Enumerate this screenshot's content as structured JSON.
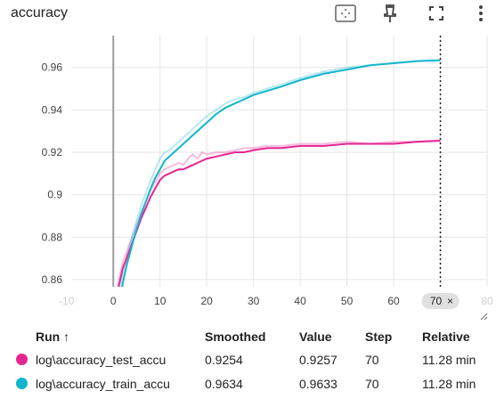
{
  "card": {
    "title": "accuracy"
  },
  "toolbar": {
    "fit_icon": "fit-to-domain-icon",
    "pin_icon": "pin-icon",
    "fullscreen_icon": "fullscreen-icon",
    "more_icon": "more-vert-icon"
  },
  "chart_data": {
    "type": "line",
    "title": "accuracy",
    "xlabel": "",
    "ylabel": "",
    "xlim": [
      -9,
      80
    ],
    "ylim": [
      0.8566,
      0.975
    ],
    "x_ticks": [
      -10,
      0,
      10,
      20,
      30,
      40,
      50,
      60,
      70,
      80
    ],
    "y_ticks": [
      0.86,
      0.88,
      0.9,
      0.92,
      0.94,
      0.96
    ],
    "y_tick_labels": [
      "0.86",
      "0.88",
      "0.9",
      "0.92",
      "0.94",
      "0.96"
    ],
    "grid": true,
    "hover_step": 70,
    "hover_label": "70",
    "series": [
      {
        "name": "log\\accuracy_test_accu",
        "color": "#e52592",
        "x": [
          0,
          1,
          2,
          3,
          4,
          5,
          6,
          7,
          8,
          9,
          10,
          11,
          12,
          13,
          14,
          15,
          16,
          17,
          18,
          19,
          20,
          22,
          24,
          26,
          28,
          30,
          33,
          36,
          40,
          45,
          50,
          55,
          60,
          65,
          70
        ],
        "smoothed": [
          0.82,
          0.855,
          0.865,
          0.871,
          0.877,
          0.883,
          0.889,
          0.894,
          0.899,
          0.903,
          0.907,
          0.909,
          0.91,
          0.911,
          0.912,
          0.912,
          0.913,
          0.914,
          0.915,
          0.916,
          0.917,
          0.918,
          0.919,
          0.92,
          0.92,
          0.921,
          0.922,
          0.922,
          0.923,
          0.923,
          0.924,
          0.924,
          0.924,
          0.925,
          0.9254
        ],
        "raw": [
          0.82,
          0.858,
          0.868,
          0.874,
          0.88,
          0.886,
          0.892,
          0.897,
          0.902,
          0.906,
          0.91,
          0.912,
          0.913,
          0.914,
          0.915,
          0.914,
          0.917,
          0.919,
          0.917,
          0.92,
          0.919,
          0.92,
          0.92,
          0.921,
          0.922,
          0.922,
          0.923,
          0.923,
          0.924,
          0.924,
          0.925,
          0.924,
          0.925,
          0.925,
          0.9257
        ]
      },
      {
        "name": "log\\accuracy_train_accu",
        "color": "#12b5cb",
        "x": [
          0,
          1,
          2,
          3,
          4,
          5,
          6,
          7,
          8,
          9,
          10,
          11,
          12,
          13,
          14,
          15,
          16,
          17,
          18,
          19,
          20,
          22,
          24,
          26,
          28,
          30,
          33,
          36,
          40,
          45,
          50,
          55,
          60,
          65,
          70
        ],
        "smoothed": [
          0.8,
          0.84,
          0.858,
          0.868,
          0.876,
          0.884,
          0.891,
          0.897,
          0.903,
          0.908,
          0.912,
          0.916,
          0.918,
          0.92,
          0.922,
          0.924,
          0.926,
          0.928,
          0.93,
          0.932,
          0.934,
          0.938,
          0.941,
          0.943,
          0.945,
          0.947,
          0.949,
          0.951,
          0.954,
          0.957,
          0.959,
          0.961,
          0.962,
          0.963,
          0.9634
        ],
        "raw": [
          0.8,
          0.845,
          0.862,
          0.872,
          0.88,
          0.888,
          0.895,
          0.901,
          0.907,
          0.912,
          0.917,
          0.92,
          0.921,
          0.923,
          0.925,
          0.927,
          0.929,
          0.931,
          0.933,
          0.935,
          0.937,
          0.94,
          0.943,
          0.945,
          0.946,
          0.948,
          0.95,
          0.952,
          0.955,
          0.958,
          0.96,
          0.961,
          0.962,
          0.963,
          0.9633
        ]
      }
    ]
  },
  "table": {
    "headers": {
      "run": "Run ↑",
      "smoothed": "Smoothed",
      "value": "Value",
      "step": "Step",
      "relative": "Relative"
    },
    "rows": [
      {
        "run": "log\\accuracy_test_accu",
        "color": "#e52592",
        "smoothed": "0.9254",
        "value": "0.9257",
        "step": "70",
        "relative": "11.28 min"
      },
      {
        "run": "log\\accuracy_train_accu",
        "color": "#12b5cb",
        "smoothed": "0.9634",
        "value": "0.9633",
        "step": "70",
        "relative": "11.28 min"
      }
    ]
  }
}
